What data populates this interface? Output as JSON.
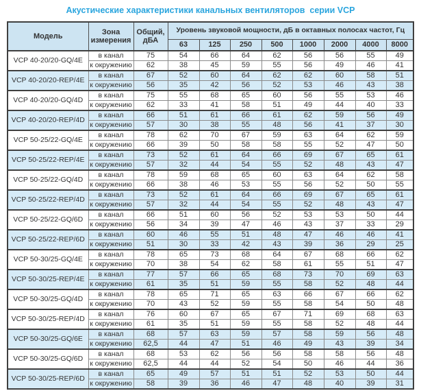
{
  "title": "Акустические характеристики канальных вентиляторов  серии VCP",
  "accent_color": "#2aa5de",
  "header_bg_color": "#cde4f2",
  "shaded_row_color": "#d6ebf7",
  "table": {
    "headers": {
      "model": "Модель",
      "zone": "Зона\nизмерения",
      "total": "Общий,\nдБА",
      "spl_title": "Уровень звуковой мощности, дБ в октавных полосах частот, Гц",
      "frequencies": [
        "63",
        "125",
        "250",
        "500",
        "1000",
        "2000",
        "4000",
        "8000"
      ]
    },
    "groups": [
      {
        "model": "VCP 40-20/20-GQ/4E",
        "shaded": false,
        "rows": [
          {
            "zone": "в канал",
            "total": "75",
            "values": [
              "54",
              "66",
              "64",
              "62",
              "56",
              "56",
              "55",
              "49"
            ]
          },
          {
            "zone": "к окружению",
            "total": "62",
            "values": [
              "38",
              "45",
              "59",
              "55",
              "56",
              "49",
              "46",
              "41"
            ]
          }
        ]
      },
      {
        "model": "VCP 40-20/20-REP/4E",
        "shaded": true,
        "rows": [
          {
            "zone": "в канал",
            "total": "67",
            "values": [
              "52",
              "60",
              "64",
              "62",
              "62",
              "60",
              "58",
              "51"
            ]
          },
          {
            "zone": "к окружению",
            "total": "56",
            "values": [
              "35",
              "42",
              "56",
              "52",
              "53",
              "46",
              "43",
              "38"
            ]
          }
        ]
      },
      {
        "model": "VCP 40-20/20-GQ/4D",
        "shaded": false,
        "rows": [
          {
            "zone": "в канал",
            "total": "75",
            "values": [
              "55",
              "68",
              "65",
              "60",
              "56",
              "55",
              "53",
              "46"
            ]
          },
          {
            "zone": "к окружению",
            "total": "62",
            "values": [
              "33",
              "41",
              "58",
              "51",
              "49",
              "44",
              "40",
              "33"
            ]
          }
        ]
      },
      {
        "model": "VCP 40-20/20-REP/4D",
        "shaded": true,
        "rows": [
          {
            "zone": "в канал",
            "total": "66",
            "values": [
              "51",
              "61",
              "66",
              "61",
              "62",
              "59",
              "56",
              "49"
            ]
          },
          {
            "zone": "к окружению",
            "total": "57",
            "values": [
              "30",
              "38",
              "55",
              "48",
              "56",
              "41",
              "37",
              "30"
            ]
          }
        ]
      },
      {
        "model": "VCP 50-25/22-GQ/4E",
        "shaded": false,
        "rows": [
          {
            "zone": "в канал",
            "total": "78",
            "values": [
              "62",
              "70",
              "67",
              "59",
              "63",
              "64",
              "62",
              "59"
            ]
          },
          {
            "zone": "к окружению",
            "total": "66",
            "values": [
              "39",
              "50",
              "58",
              "58",
              "55",
              "52",
              "47",
              "50"
            ]
          }
        ]
      },
      {
        "model": "VCP 50-25/22-REP/4E",
        "shaded": true,
        "rows": [
          {
            "zone": "в канал",
            "total": "73",
            "values": [
              "52",
              "61",
              "64",
              "66",
              "69",
              "67",
              "65",
              "61"
            ]
          },
          {
            "zone": "к окружению",
            "total": "57",
            "values": [
              "32",
              "44",
              "54",
              "55",
              "52",
              "48",
              "43",
              "47"
            ]
          }
        ]
      },
      {
        "model": "VCP 50-25/22-GQ/4D",
        "shaded": false,
        "rows": [
          {
            "zone": "в канал",
            "total": "78",
            "values": [
              "59",
              "68",
              "65",
              "60",
              "63",
              "64",
              "62",
              "58"
            ]
          },
          {
            "zone": "к окружению",
            "total": "66",
            "values": [
              "38",
              "46",
              "53",
              "55",
              "56",
              "52",
              "50",
              "55"
            ]
          }
        ]
      },
      {
        "model": "VCP 50-25/22-REP/4D",
        "shaded": true,
        "rows": [
          {
            "zone": "в канал",
            "total": "73",
            "values": [
              "52",
              "61",
              "64",
              "66",
              "69",
              "67",
              "65",
              "61"
            ]
          },
          {
            "zone": "к окружению",
            "total": "57",
            "values": [
              "32",
              "44",
              "54",
              "55",
              "52",
              "48",
              "43",
              "47"
            ]
          }
        ]
      },
      {
        "model": "VCP 50-25/22-GQ/6D",
        "shaded": false,
        "rows": [
          {
            "zone": "в канал",
            "total": "66",
            "values": [
              "51",
              "60",
              "56",
              "52",
              "53",
              "53",
              "50",
              "44"
            ]
          },
          {
            "zone": "к окружению",
            "total": "56",
            "values": [
              "34",
              "39",
              "47",
              "46",
              "43",
              "37",
              "33",
              "29"
            ]
          }
        ]
      },
      {
        "model": "VCP 50-25/22-REP/6D",
        "shaded": true,
        "rows": [
          {
            "zone": "в канал",
            "total": "60",
            "values": [
              "46",
              "55",
              "51",
              "48",
              "47",
              "46",
              "46",
              "41"
            ]
          },
          {
            "zone": "к окружению",
            "total": "51",
            "values": [
              "30",
              "33",
              "42",
              "43",
              "39",
              "36",
              "29",
              "25"
            ]
          }
        ]
      },
      {
        "model": "VCP 50-30/25-GQ/4E",
        "shaded": false,
        "rows": [
          {
            "zone": "в канал",
            "total": "78",
            "values": [
              "65",
              "73",
              "68",
              "64",
              "67",
              "68",
              "66",
              "62"
            ]
          },
          {
            "zone": "к окружению",
            "total": "70",
            "values": [
              "38",
              "54",
              "62",
              "58",
              "61",
              "55",
              "51",
              "47"
            ]
          }
        ]
      },
      {
        "model": "VCP 50-30/25-REP/4E",
        "shaded": true,
        "rows": [
          {
            "zone": "в канал",
            "total": "77",
            "values": [
              "57",
              "66",
              "65",
              "68",
              "73",
              "70",
              "69",
              "63"
            ]
          },
          {
            "zone": "к окружению",
            "total": "61",
            "values": [
              "35",
              "51",
              "59",
              "55",
              "58",
              "52",
              "48",
              "44"
            ]
          }
        ]
      },
      {
        "model": "VCP 50-30/25-GQ/4D",
        "shaded": false,
        "rows": [
          {
            "zone": "в канал",
            "total": "78",
            "values": [
              "65",
              "71",
              "65",
              "63",
              "66",
              "67",
              "66",
              "62"
            ]
          },
          {
            "zone": "к окружению",
            "total": "70",
            "values": [
              "43",
              "52",
              "59",
              "55",
              "58",
              "54",
              "50",
              "48"
            ]
          }
        ]
      },
      {
        "model": "VCP 50-30/25-REP/4D",
        "shaded": false,
        "rows": [
          {
            "zone": "в канал",
            "total": "76",
            "values": [
              "60",
              "67",
              "65",
              "67",
              "71",
              "69",
              "68",
              "63"
            ]
          },
          {
            "zone": "к окружению",
            "total": "61",
            "values": [
              "35",
              "51",
              "59",
              "55",
              "58",
              "52",
              "48",
              "44"
            ]
          }
        ]
      },
      {
        "model": "VCP 50-30/25-GQ/6E",
        "shaded": true,
        "rows": [
          {
            "zone": "в канал",
            "total": "68",
            "values": [
              "57",
              "63",
              "59",
              "57",
              "58",
              "59",
              "56",
              "48"
            ]
          },
          {
            "zone": "к окружению",
            "total": "62,5",
            "values": [
              "44",
              "47",
              "51",
              "46",
              "49",
              "43",
              "39",
              "34"
            ]
          }
        ]
      },
      {
        "model": "VCP 50-30/25-GQ/6D",
        "shaded": false,
        "rows": [
          {
            "zone": "в канал",
            "total": "68",
            "values": [
              "53",
              "62",
              "56",
              "56",
              "58",
              "58",
              "56",
              "48"
            ]
          },
          {
            "zone": "к окружению",
            "total": "62,5",
            "values": [
              "44",
              "44",
              "52",
              "54",
              "50",
              "46",
              "44",
              "36"
            ]
          }
        ]
      },
      {
        "model": "VCP 50-30/25-REP/6D",
        "shaded": true,
        "rows": [
          {
            "zone": "в канал",
            "total": "65",
            "values": [
              "49",
              "57",
              "51",
              "51",
              "52",
              "53",
              "50",
              "44"
            ]
          },
          {
            "zone": "к окружению",
            "total": "58",
            "values": [
              "39",
              "36",
              "46",
              "47",
              "48",
              "40",
              "39",
              "31"
            ]
          }
        ]
      }
    ]
  }
}
